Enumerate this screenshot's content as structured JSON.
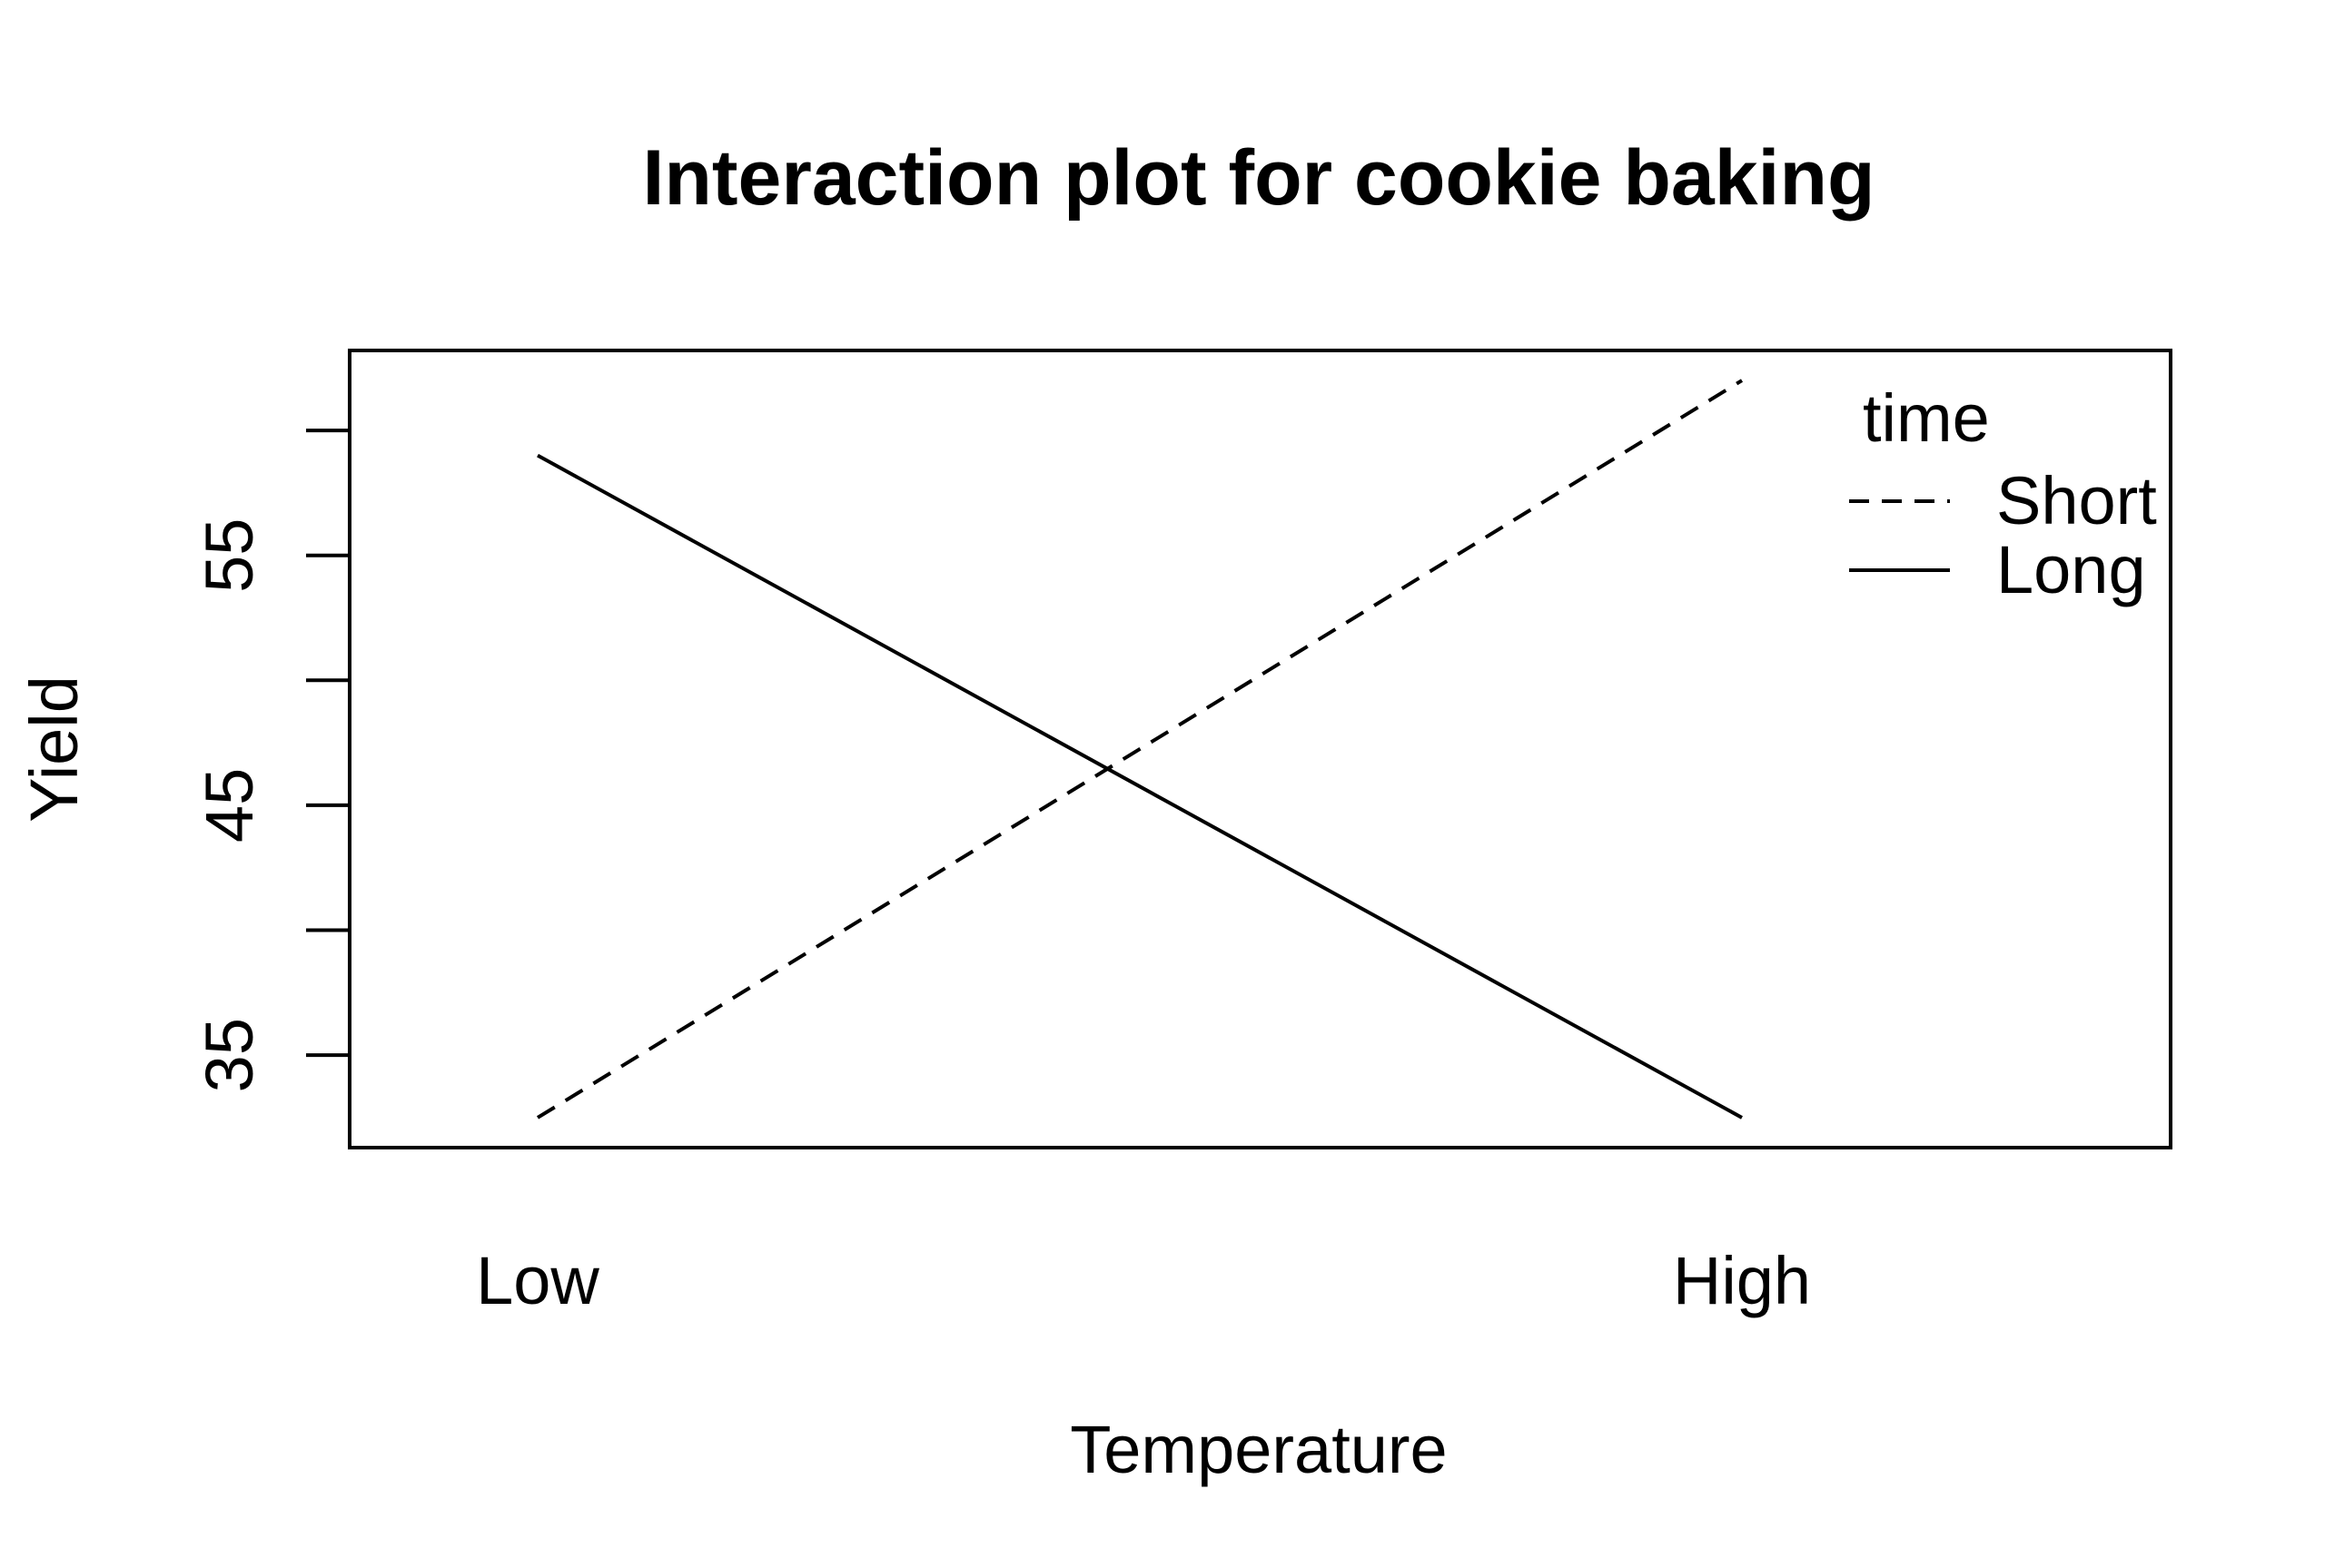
{
  "chart_data": {
    "type": "line",
    "title": "Interaction plot for cookie baking",
    "xlabel": "Temperature",
    "ylabel": "Yield",
    "categories": [
      "Low",
      "High"
    ],
    "yticks": [
      35,
      45,
      55
    ],
    "yminor_ticks": [
      40,
      50,
      60
    ],
    "ylim": [
      31.3,
      63.2
    ],
    "grid": false,
    "legend": {
      "title": "time",
      "position": "top-right"
    },
    "series": [
      {
        "name": "Short",
        "values": [
          32.5,
          62.0
        ],
        "line_style": "dashed"
      },
      {
        "name": "Long",
        "values": [
          59.0,
          32.5
        ],
        "line_style": "solid"
      }
    ],
    "colors": {
      "line": "#000000",
      "axis": "#000000"
    }
  }
}
